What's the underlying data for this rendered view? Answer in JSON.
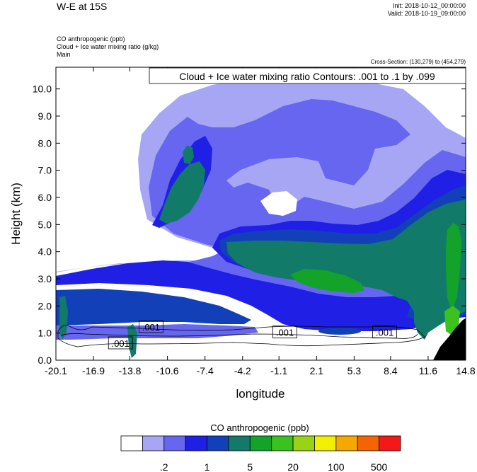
{
  "header": {
    "title": "W-E at 15S",
    "init": "Init: 2018-10-12_00:00:00",
    "valid": "Valid: 2018-10-19_09:00:00",
    "field1": "CO anthropogenic   (ppb)",
    "field2": "Cloud + Ice water mixing ratio   (g/kg)",
    "field3": "Main",
    "cross_section": "Cross-Section: (130,279) to (454,279)",
    "contour_info": "Cloud + Ice water mixing ratio Contours: .001 to .1 by .099"
  },
  "chart_data": {
    "type": "heatmap",
    "title": "W-E at 15S",
    "xlabel": "longitude",
    "ylabel": "Height (km)",
    "xlim": [
      -20.1,
      14.8
    ],
    "ylim": [
      0.0,
      10.8
    ],
    "x_ticks": [
      "-20.1",
      "-16.9",
      "-13.8",
      "-10.6",
      "-7.4",
      "-4.2",
      "-1.1",
      "2.1",
      "5.3",
      "8.4",
      "11.6",
      "14.8"
    ],
    "y_ticks": [
      "0.0",
      "1.0",
      "2.0",
      "3.0",
      "4.0",
      "5.0",
      "6.0",
      "7.0",
      "8.0",
      "9.0",
      "10.0"
    ],
    "y_tick_values": [
      0,
      1,
      2,
      3,
      4,
      5,
      6,
      7,
      8,
      9,
      10
    ],
    "contour_labels": [
      {
        "text": ".001",
        "x": -14.6,
        "y": 0.6
      },
      {
        "text": ".001",
        "x": -12.0,
        "y": 1.2
      },
      {
        "text": ".001",
        "x": -0.6,
        "y": 1.0
      },
      {
        "text": ".001",
        "x": 7.9,
        "y": 1.0
      }
    ],
    "colorbar": {
      "title": "CO anthropogenic  (ppb)",
      "colors": [
        "#ffffff",
        "#a6a6f4",
        "#6666f0",
        "#1f1fe6",
        "#1240b8",
        "#127a68",
        "#13a32a",
        "#3cc21e",
        "#9ad216",
        "#f0f000",
        "#f5a800",
        "#f56400",
        "#f51818"
      ],
      "labels": [
        {
          "text": ".2",
          "boundary": 2
        },
        {
          "text": "1",
          "boundary": 4
        },
        {
          "text": "5",
          "boundary": 6
        },
        {
          "text": "20",
          "boundary": 8
        },
        {
          "text": "100",
          "boundary": 10
        },
        {
          "text": "500",
          "boundary": 12
        }
      ]
    }
  }
}
